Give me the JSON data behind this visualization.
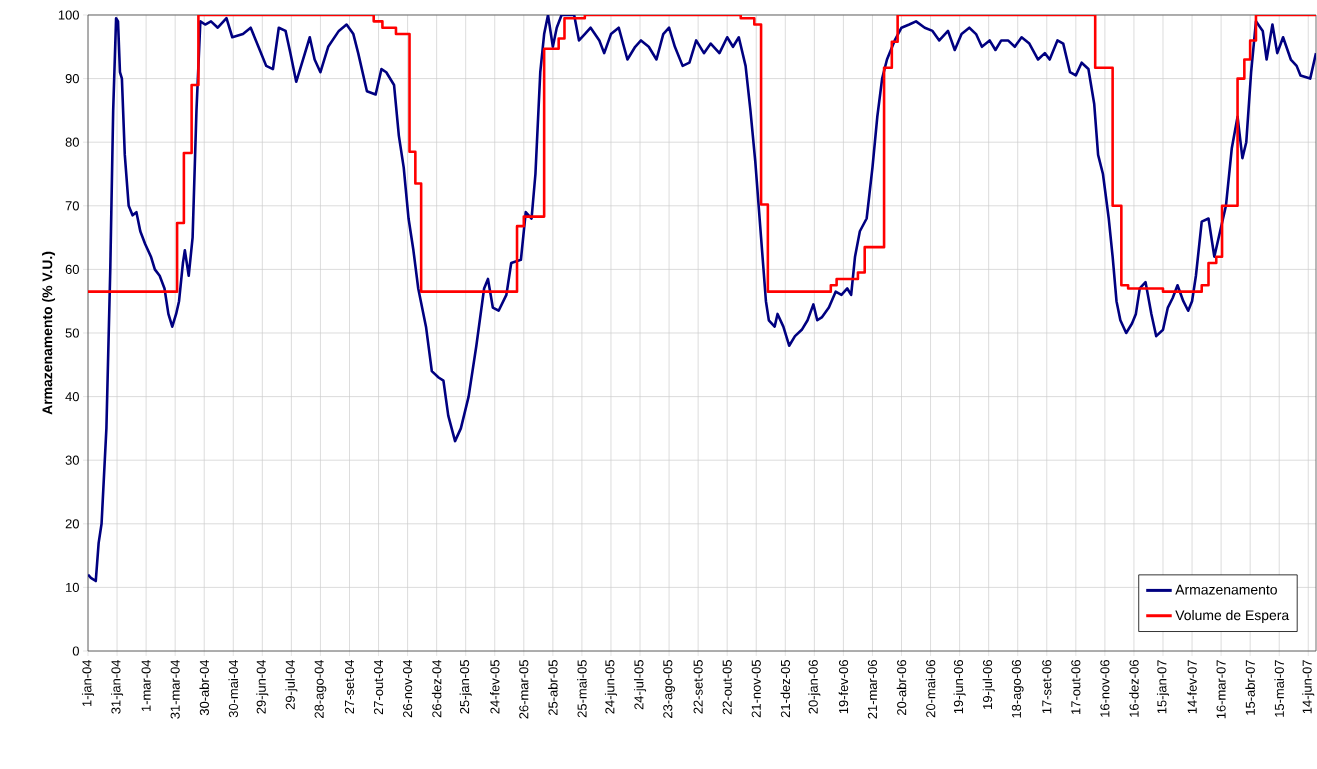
{
  "chart_data": {
    "type": "line",
    "ylabel": "Armazenamento (% V.U.)",
    "xlim": [
      "2004-01-01",
      "2007-06-22"
    ],
    "ylim": [
      0,
      100
    ],
    "xticks": [
      {
        "value": "2004-01-01",
        "label": "1-jan-04"
      },
      {
        "value": "2004-01-31",
        "label": "31-jan-04"
      },
      {
        "value": "2004-03-01",
        "label": "1-mar-04"
      },
      {
        "value": "2004-03-31",
        "label": "31-mar-04"
      },
      {
        "value": "2004-04-30",
        "label": "30-abr-04"
      },
      {
        "value": "2004-05-30",
        "label": "30-mai-04"
      },
      {
        "value": "2004-06-29",
        "label": "29-jun-04"
      },
      {
        "value": "2004-07-29",
        "label": "29-jul-04"
      },
      {
        "value": "2004-08-28",
        "label": "28-ago-04"
      },
      {
        "value": "2004-09-27",
        "label": "27-set-04"
      },
      {
        "value": "2004-10-27",
        "label": "27-out-04"
      },
      {
        "value": "2004-11-26",
        "label": "26-nov-04"
      },
      {
        "value": "2004-12-26",
        "label": "26-dez-04"
      },
      {
        "value": "2005-01-25",
        "label": "25-jan-05"
      },
      {
        "value": "2005-02-24",
        "label": "24-fev-05"
      },
      {
        "value": "2005-03-26",
        "label": "26-mar-05"
      },
      {
        "value": "2005-04-25",
        "label": "25-abr-05"
      },
      {
        "value": "2005-05-25",
        "label": "25-mai-05"
      },
      {
        "value": "2005-06-24",
        "label": "24-jun-05"
      },
      {
        "value": "2005-07-24",
        "label": "24-jul-05"
      },
      {
        "value": "2005-08-23",
        "label": "23-ago-05"
      },
      {
        "value": "2005-09-22",
        "label": "22-set-05"
      },
      {
        "value": "2005-10-22",
        "label": "22-out-05"
      },
      {
        "value": "2005-11-21",
        "label": "21-nov-05"
      },
      {
        "value": "2005-12-21",
        "label": "21-dez-05"
      },
      {
        "value": "2006-01-20",
        "label": "20-jan-06"
      },
      {
        "value": "2006-02-19",
        "label": "19-fev-06"
      },
      {
        "value": "2006-03-21",
        "label": "21-mar-06"
      },
      {
        "value": "2006-04-20",
        "label": "20-abr-06"
      },
      {
        "value": "2006-05-20",
        "label": "20-mai-06"
      },
      {
        "value": "2006-06-19",
        "label": "19-jun-06"
      },
      {
        "value": "2006-07-19",
        "label": "19-jul-06"
      },
      {
        "value": "2006-08-18",
        "label": "18-ago-06"
      },
      {
        "value": "2006-09-17",
        "label": "17-set-06"
      },
      {
        "value": "2006-10-17",
        "label": "17-out-06"
      },
      {
        "value": "2006-11-16",
        "label": "16-nov-06"
      },
      {
        "value": "2006-12-16",
        "label": "16-dez-06"
      },
      {
        "value": "2007-01-15",
        "label": "15-jan-07"
      },
      {
        "value": "2007-02-14",
        "label": "14-fev-07"
      },
      {
        "value": "2007-03-16",
        "label": "16-mar-07"
      },
      {
        "value": "2007-04-15",
        "label": "15-abr-07"
      },
      {
        "value": "2007-05-15",
        "label": "15-mai-07"
      },
      {
        "value": "2007-06-14",
        "label": "14-jun-07"
      }
    ],
    "yticks": [
      0,
      10,
      20,
      30,
      40,
      50,
      60,
      70,
      80,
      90,
      100
    ],
    "grid": true,
    "legend": "bottom right",
    "series": [
      {
        "name": "Armazenamento",
        "color": "#000080",
        "x": [
          "2004-01-01",
          "2004-01-04",
          "2004-01-09",
          "2004-01-12",
          "2004-01-15",
          "2004-01-20",
          "2004-01-24",
          "2004-01-27",
          "2004-01-30",
          "2004-02-01",
          "2004-02-03",
          "2004-02-05",
          "2004-02-08",
          "2004-02-12",
          "2004-02-16",
          "2004-02-20",
          "2004-02-24",
          "2004-02-29",
          "2004-03-06",
          "2004-03-10",
          "2004-03-15",
          "2004-03-20",
          "2004-03-24",
          "2004-03-28",
          "2004-04-01",
          "2004-04-04",
          "2004-04-08",
          "2004-04-10",
          "2004-04-14",
          "2004-04-18",
          "2004-04-22",
          "2004-04-26",
          "2004-05-01",
          "2004-05-07",
          "2004-05-14",
          "2004-05-23",
          "2004-05-29",
          "2004-06-09",
          "2004-06-17",
          "2004-06-25",
          "2004-07-03",
          "2004-07-10",
          "2004-07-16",
          "2004-07-23",
          "2004-07-28",
          "2004-08-03",
          "2004-08-10",
          "2004-08-17",
          "2004-08-22",
          "2004-08-28",
          "2004-09-05",
          "2004-09-16",
          "2004-09-24",
          "2004-10-01",
          "2004-10-06",
          "2004-10-15",
          "2004-10-24",
          "2004-10-30",
          "2004-11-04",
          "2004-11-12",
          "2004-11-17",
          "2004-11-22",
          "2004-11-27",
          "2004-12-02",
          "2004-12-07",
          "2004-12-15",
          "2004-12-21",
          "2004-12-28",
          "2005-01-02",
          "2005-01-07",
          "2005-01-14",
          "2005-01-20",
          "2005-01-28",
          "2005-02-05",
          "2005-02-13",
          "2005-02-17",
          "2005-02-22",
          "2005-02-28",
          "2005-03-08",
          "2005-03-13",
          "2005-03-23",
          "2005-03-28",
          "2005-04-03",
          "2005-04-07",
          "2005-04-12",
          "2005-04-16",
          "2005-04-20",
          "2005-04-25",
          "2005-04-29",
          "2005-05-04",
          "2005-05-17",
          "2005-05-22",
          "2005-05-28",
          "2005-06-03",
          "2005-06-12",
          "2005-06-17",
          "2005-06-24",
          "2005-07-02",
          "2005-07-11",
          "2005-07-19",
          "2005-07-25",
          "2005-08-02",
          "2005-08-10",
          "2005-08-17",
          "2005-08-23",
          "2005-08-29",
          "2005-09-06",
          "2005-09-13",
          "2005-09-20",
          "2005-09-28",
          "2005-10-05",
          "2005-10-14",
          "2005-10-22",
          "2005-10-28",
          "2005-11-03",
          "2005-11-10",
          "2005-11-15",
          "2005-11-20",
          "2005-11-26",
          "2005-12-01",
          "2005-12-04",
          "2005-12-10",
          "2005-12-13",
          "2005-12-19",
          "2005-12-25",
          "2005-12-31",
          "2006-01-07",
          "2006-01-13",
          "2006-01-19",
          "2006-01-23",
          "2006-01-28",
          "2006-02-04",
          "2006-02-11",
          "2006-02-17",
          "2006-02-23",
          "2006-02-27",
          "2006-03-03",
          "2006-03-08",
          "2006-03-15",
          "2006-03-21",
          "2006-03-26",
          "2006-03-31",
          "2006-04-05",
          "2006-04-13",
          "2006-04-20",
          "2006-04-28",
          "2006-05-05",
          "2006-05-14",
          "2006-05-22",
          "2006-05-29",
          "2006-06-07",
          "2006-06-14",
          "2006-06-21",
          "2006-06-29",
          "2006-07-06",
          "2006-07-12",
          "2006-07-20",
          "2006-07-26",
          "2006-08-01",
          "2006-08-08",
          "2006-08-15",
          "2006-08-22",
          "2006-08-30",
          "2006-09-08",
          "2006-09-15",
          "2006-09-20",
          "2006-09-28",
          "2006-10-04",
          "2006-10-11",
          "2006-10-17",
          "2006-10-23",
          "2006-10-30",
          "2006-11-05",
          "2006-11-09",
          "2006-11-14",
          "2006-11-20",
          "2006-11-24",
          "2006-11-28",
          "2006-12-02",
          "2006-12-08",
          "2006-12-14",
          "2006-12-18",
          "2006-12-22",
          "2006-12-28",
          "2007-01-03",
          "2007-01-08",
          "2007-01-15",
          "2007-01-20",
          "2007-01-25",
          "2007-01-30",
          "2007-02-05",
          "2007-02-10",
          "2007-02-14",
          "2007-02-18",
          "2007-02-24",
          "2007-03-03",
          "2007-03-09",
          "2007-03-15",
          "2007-03-21",
          "2007-03-27",
          "2007-04-02",
          "2007-04-07",
          "2007-04-11",
          "2007-04-16",
          "2007-04-21",
          "2007-04-28",
          "2007-05-02",
          "2007-05-08",
          "2007-05-13",
          "2007-05-19",
          "2007-05-27",
          "2007-06-02",
          "2007-06-06",
          "2007-06-16",
          "2007-06-22"
        ],
        "values": [
          12,
          11.5,
          11,
          17,
          20,
          35,
          60,
          85,
          99.5,
          99,
          91,
          90,
          78,
          70,
          68.5,
          69,
          66,
          64,
          62,
          60,
          59,
          57,
          53,
          51,
          53,
          55,
          61,
          63,
          59,
          65,
          85,
          99,
          98.5,
          99,
          98,
          99.5,
          96.5,
          97,
          98,
          95,
          92,
          91.5,
          98,
          97.5,
          94,
          89.5,
          93,
          96.5,
          93,
          91,
          95,
          97.5,
          98.5,
          97,
          94,
          88,
          87.5,
          91.5,
          91,
          89,
          81,
          76,
          68,
          63,
          57,
          51,
          44,
          43,
          42.5,
          37,
          33,
          35,
          40,
          48,
          57,
          58.5,
          54,
          53.5,
          56,
          61,
          61.5,
          69,
          68,
          75,
          91,
          97,
          100,
          95,
          98,
          100,
          100,
          96,
          97,
          98,
          96,
          94,
          97,
          98,
          93,
          95,
          96,
          95,
          93,
          97,
          98,
          95,
          92,
          92.5,
          96,
          94,
          95.5,
          94,
          96.5,
          95,
          96.5,
          92,
          85,
          77,
          65,
          55,
          52,
          51,
          53,
          51,
          48,
          49.5,
          50.5,
          52,
          54.5,
          52,
          52.5,
          54,
          56.5,
          56,
          57,
          56,
          62,
          66,
          68,
          76,
          84,
          90,
          93,
          96,
          98,
          98.5,
          99,
          98,
          97.5,
          96,
          97.5,
          94.5,
          97,
          98,
          97,
          95,
          96,
          94.5,
          96,
          96,
          95,
          96.5,
          95.5,
          93,
          94,
          93,
          96,
          95.5,
          91,
          90.5,
          92.5,
          91.5,
          86,
          78,
          75,
          68,
          62,
          55,
          52,
          50,
          51.5,
          53,
          57,
          58,
          53,
          49.5,
          50.5,
          54,
          55.5,
          57.5,
          55,
          53.5,
          55,
          59,
          67.5,
          68,
          62,
          66,
          70,
          79,
          84,
          77.5,
          80,
          91,
          99,
          97.5,
          93,
          98.5,
          94,
          96.5,
          93,
          92,
          90.5,
          90,
          94
        ]
      },
      {
        "name": "Volume de Espera",
        "color": "#ff0000",
        "type": "step",
        "x": [
          "2004-01-01",
          "2004-04-02",
          "2004-04-09",
          "2004-04-17",
          "2004-04-24",
          "2004-10-22",
          "2004-10-31",
          "2004-11-14",
          "2004-11-28",
          "2004-12-04",
          "2004-12-10",
          "2005-03-19",
          "2005-03-26",
          "2005-04-16",
          "2005-05-01",
          "2005-05-07",
          "2005-05-28",
          "2005-11-05",
          "2005-11-19",
          "2005-11-26",
          "2005-12-03",
          "2006-02-06",
          "2006-02-12",
          "2006-03-06",
          "2006-03-13",
          "2006-04-02",
          "2006-04-10",
          "2006-04-16",
          "2006-11-06",
          "2006-11-24",
          "2006-12-03",
          "2006-12-10",
          "2007-01-15",
          "2007-02-24",
          "2007-03-03",
          "2007-03-11",
          "2007-03-17",
          "2007-04-02",
          "2007-04-09",
          "2007-04-15",
          "2007-04-21",
          "2007-06-22"
        ],
        "values": [
          56.5,
          67.3,
          78.3,
          89,
          100,
          99,
          98,
          97,
          78.5,
          73.5,
          56.5,
          66.8,
          68.3,
          94.7,
          96.3,
          99.5,
          100,
          99.5,
          98.5,
          70.2,
          56.5,
          57.5,
          58.5,
          59.5,
          63.5,
          91.7,
          95.8,
          100,
          91.7,
          70,
          57.5,
          57,
          56.5,
          57.5,
          61,
          62,
          70,
          90,
          93,
          96,
          100,
          100
        ]
      }
    ]
  }
}
